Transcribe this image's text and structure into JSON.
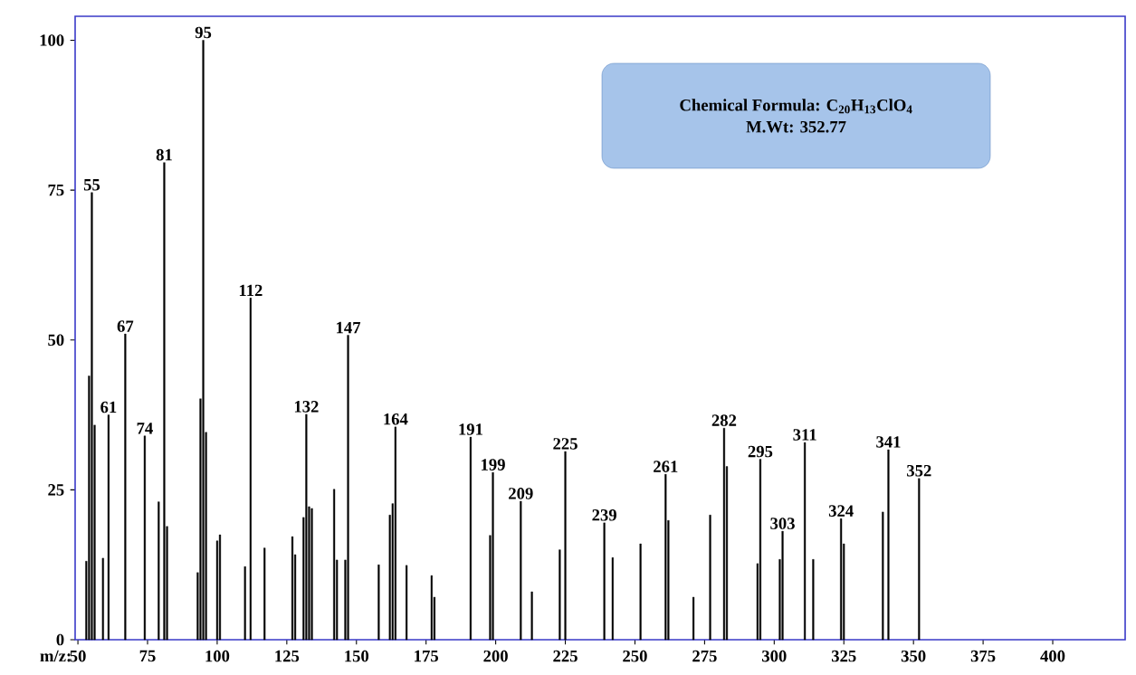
{
  "chart_data": {
    "type": "bar",
    "xlabel": "m/z:",
    "color": "#000000",
    "x": [
      53,
      54,
      55,
      56,
      59,
      61,
      67,
      74,
      79,
      81,
      82,
      93,
      94,
      95,
      96,
      100,
      101,
      110,
      112,
      117,
      127,
      128,
      131,
      132,
      133,
      134,
      142,
      143,
      146,
      147,
      158,
      162,
      163,
      164,
      168,
      177,
      178,
      191,
      198,
      199,
      209,
      213,
      223,
      225,
      239,
      242,
      252,
      261,
      262,
      271,
      277,
      282,
      283,
      294,
      295,
      302,
      303,
      311,
      314,
      324,
      325,
      339,
      341,
      352
    ],
    "values": [
      13.1,
      44,
      74.6,
      35.8,
      13.6,
      37.5,
      51,
      34,
      23,
      79.6,
      18.9,
      11.2,
      40.2,
      100,
      34.6,
      16.5,
      17.5,
      12.2,
      57,
      15.3,
      17.2,
      14.2,
      20.4,
      37.6,
      22.2,
      21.9,
      25.1,
      13.3,
      13.3,
      50.8,
      12.5,
      20.8,
      22.7,
      35.5,
      12.4,
      10.7,
      7.1,
      33.8,
      17.4,
      27.9,
      23.1,
      8,
      15,
      31.4,
      19.5,
      13.7,
      16,
      27.6,
      19.9,
      7.1,
      20.8,
      35.3,
      28.9,
      12.7,
      30.1,
      13.4,
      18.1,
      32.9,
      13.4,
      20.2,
      16,
      21.3,
      31.7,
      26.9
    ],
    "xlim": [
      49,
      426
    ],
    "ylim": [
      0,
      104
    ],
    "xticks": [
      50,
      75,
      100,
      125,
      150,
      175,
      200,
      225,
      250,
      275,
      300,
      325,
      350,
      375,
      400
    ],
    "yticks": [
      0,
      25,
      50,
      75,
      100
    ],
    "annotations": [
      {
        "text": "55",
        "x": 55,
        "y": 74.6
      },
      {
        "text": "61",
        "x": 61,
        "y": 37.5
      },
      {
        "text": "67",
        "x": 67,
        "y": 51
      },
      {
        "text": "74",
        "x": 74,
        "y": 34
      },
      {
        "text": "81",
        "x": 81,
        "y": 79.6
      },
      {
        "text": "95",
        "x": 95,
        "y": 100
      },
      {
        "text": "112",
        "x": 112,
        "y": 57
      },
      {
        "text": "132",
        "x": 132,
        "y": 37.6
      },
      {
        "text": "147",
        "x": 147,
        "y": 50.8
      },
      {
        "text": "164",
        "x": 164,
        "y": 35.5
      },
      {
        "text": "191",
        "x": 191,
        "y": 33.8
      },
      {
        "text": "199",
        "x": 199,
        "y": 27.9
      },
      {
        "text": "209",
        "x": 209,
        "y": 23.1
      },
      {
        "text": "225",
        "x": 225,
        "y": 31.4
      },
      {
        "text": "239",
        "x": 239,
        "y": 19.5
      },
      {
        "text": "261",
        "x": 261,
        "y": 27.6
      },
      {
        "text": "282",
        "x": 282,
        "y": 35.3
      },
      {
        "text": "295",
        "x": 295,
        "y": 30.1
      },
      {
        "text": "303",
        "x": 303,
        "y": 18.1
      },
      {
        "text": "311",
        "x": 311,
        "y": 32.9
      },
      {
        "text": "324",
        "x": 324,
        "y": 20.2
      },
      {
        "text": "341",
        "x": 341,
        "y": 31.7
      },
      {
        "text": "352",
        "x": 352,
        "y": 26.9
      },
      "Chemical Formula: C$_{20}$H$_{13}$ClO$_{4}$",
      "M.Wt: 352.77"
    ]
  }
}
